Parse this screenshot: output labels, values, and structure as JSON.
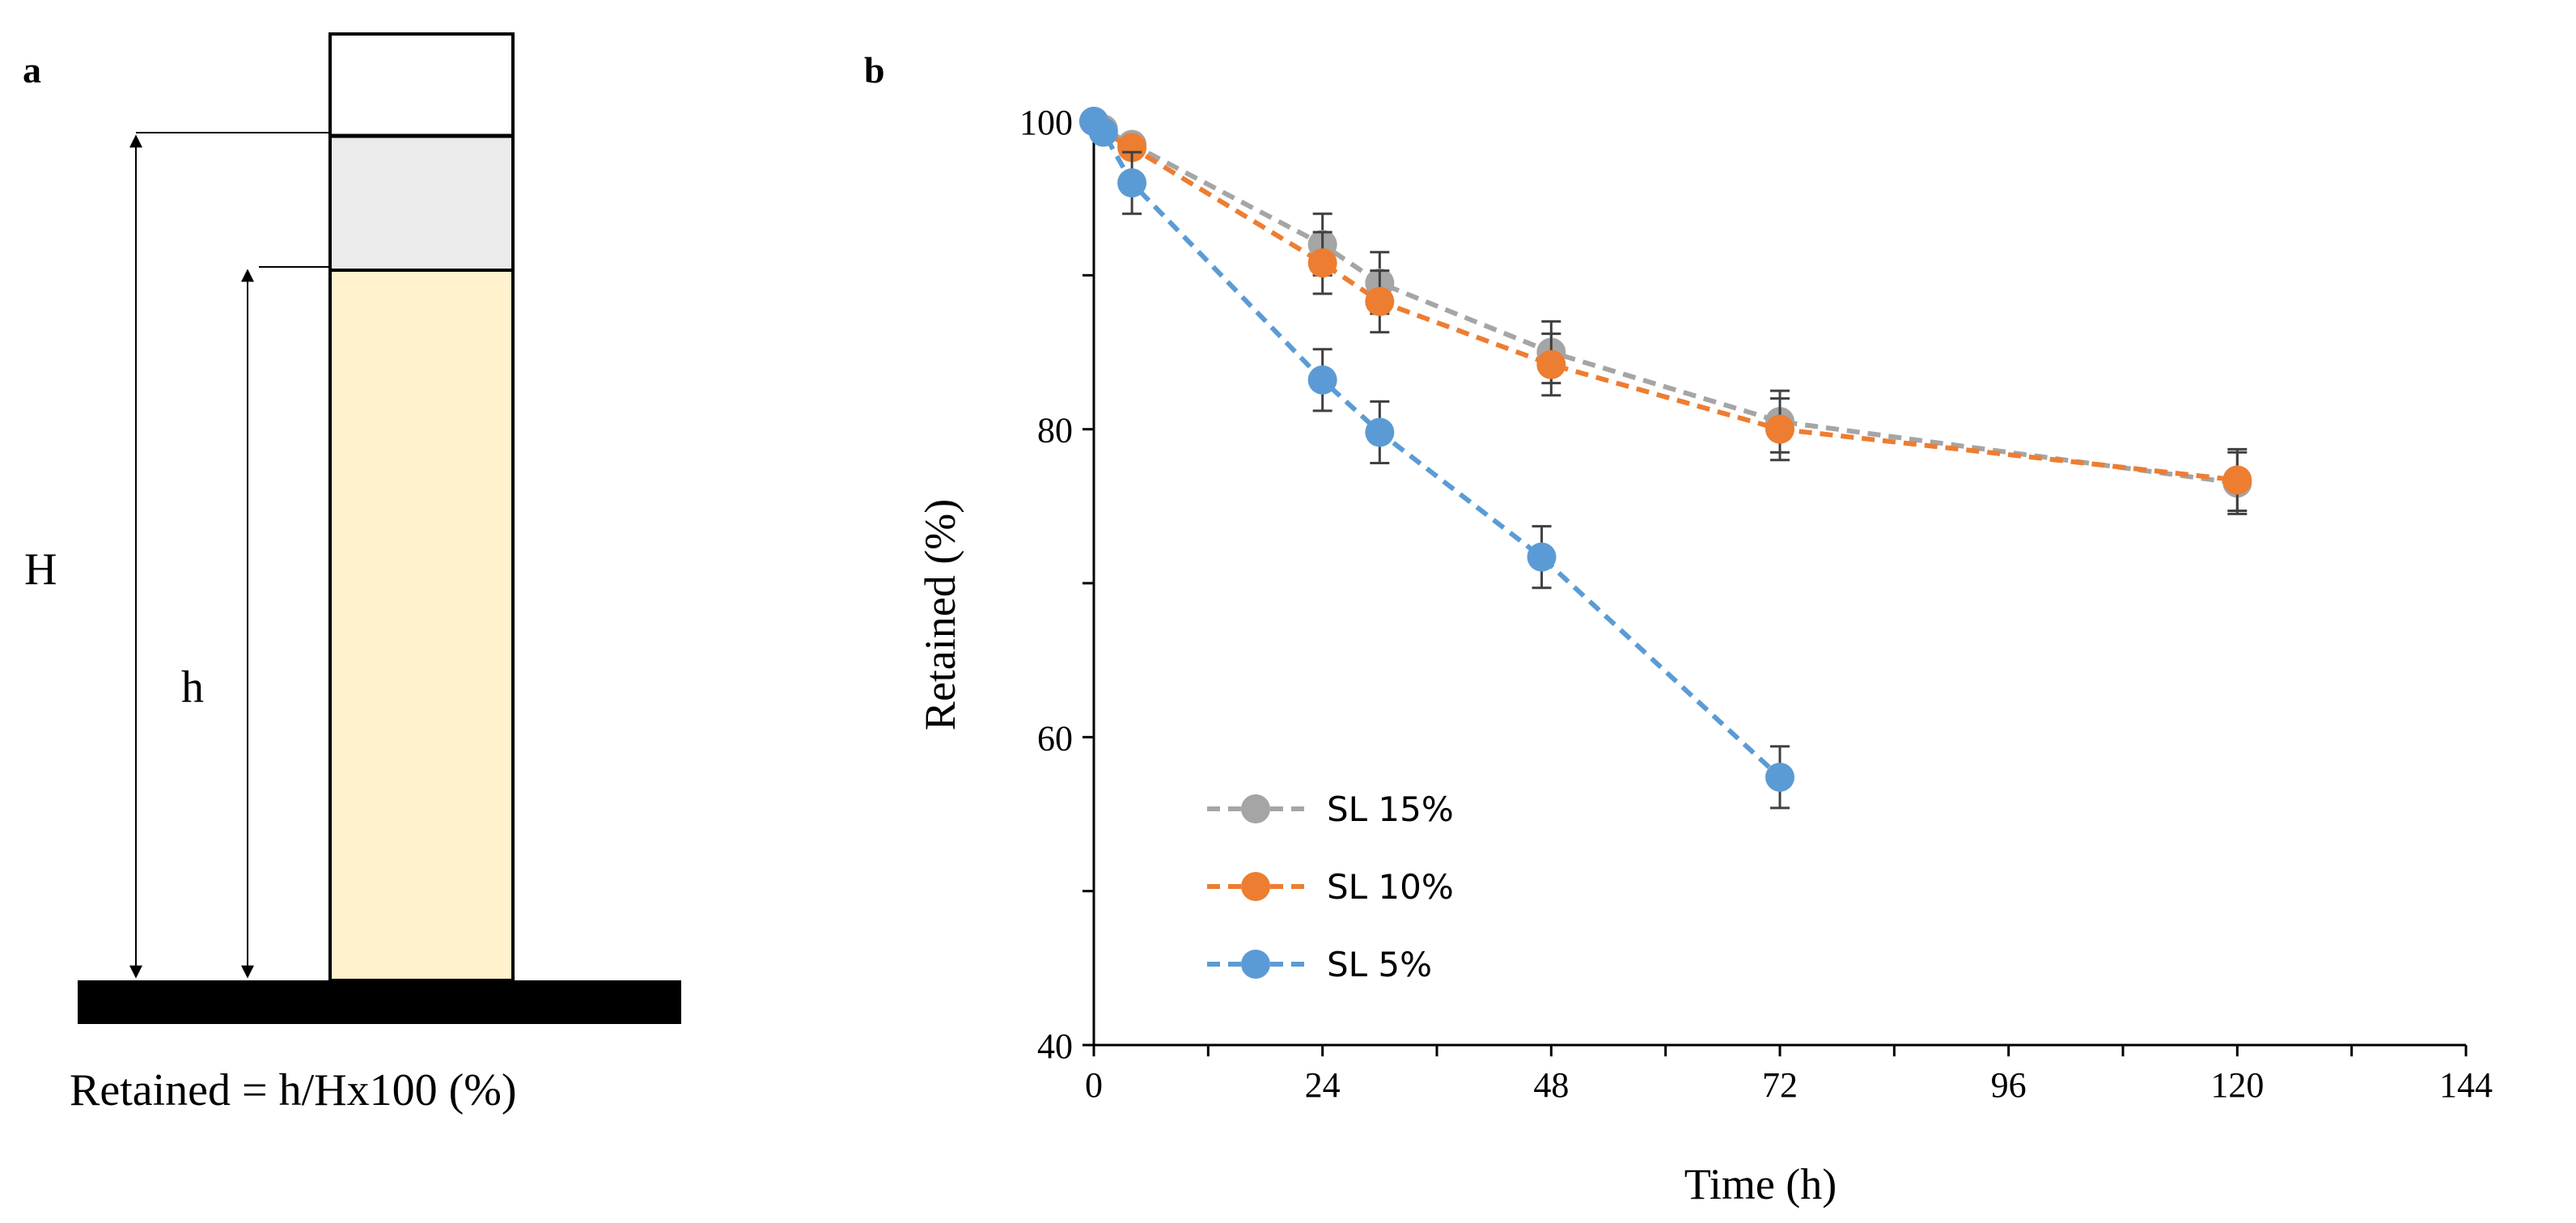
{
  "panel_a": {
    "label": "a",
    "label_H": "H",
    "label_h": "h",
    "formula": "Retained = h/Hx100 (%)",
    "colors": {
      "liquid": "#FFF2CC",
      "foam": "#EBEBEB",
      "base": "#000000"
    }
  },
  "chart_data": {
    "label": "b",
    "type": "line",
    "xlabel": "Time (h)",
    "ylabel": "Retained (%)",
    "xlim": [
      0,
      144
    ],
    "ylim": [
      40,
      100
    ],
    "xticks": [
      "0",
      "24",
      "48",
      "72",
      "96",
      "120",
      "144"
    ],
    "yticks": [
      "40",
      "60",
      "80",
      "100"
    ],
    "legend_position": "lower-left",
    "grid": false,
    "line_style": "dashed",
    "series": [
      {
        "name": "SL 15%",
        "color": "#A5A5A5",
        "x": [
          0,
          1,
          4,
          24,
          30,
          48,
          72,
          120
        ],
        "y": [
          100,
          99.5,
          98.5,
          92,
          89.5,
          85,
          80.5,
          76.5
        ],
        "err": [
          0,
          0,
          0,
          2,
          2,
          2,
          2,
          2
        ]
      },
      {
        "name": "SL 10%",
        "color": "#ED7D31",
        "x": [
          0,
          1,
          4,
          24,
          30,
          48,
          72,
          120
        ],
        "y": [
          100,
          99.3,
          98.3,
          90.8,
          88.3,
          84.2,
          80,
          76.7
        ],
        "err": [
          0,
          0,
          0,
          2,
          2,
          2,
          2,
          2
        ]
      },
      {
        "name": "SL 5%",
        "color": "#5B9BD5",
        "x": [
          0,
          1,
          4,
          24,
          30,
          47,
          72
        ],
        "y": [
          100,
          99.3,
          96,
          83.2,
          79.8,
          71.7,
          57.4
        ],
        "err": [
          0,
          0,
          2,
          2,
          2,
          2,
          2
        ]
      }
    ]
  }
}
